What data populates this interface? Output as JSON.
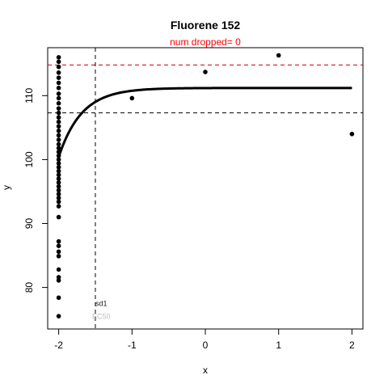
{
  "chart_data": {
    "type": "scatter",
    "title": "Fluorene 152",
    "subtitle": "num dropped= 0",
    "xlabel": "x",
    "ylabel": "y",
    "xlim": [
      -2.15,
      2.15
    ],
    "ylim": [
      73.5,
      117.5
    ],
    "x_ticks": [
      -2,
      -1,
      0,
      1,
      2
    ],
    "y_ticks": [
      80,
      90,
      100,
      110
    ],
    "grid": false,
    "colors": {
      "points": "#000000",
      "fit": "#000000",
      "upper_line": "#cc0000",
      "sd_line": "#000000",
      "vline": "#000000",
      "subtitle": "#ff0000"
    },
    "points": [
      [
        -2,
        116.0
      ],
      [
        -2,
        115.3
      ],
      [
        -2,
        114.5
      ],
      [
        -2,
        113.6
      ],
      [
        -2,
        112.8
      ],
      [
        -2,
        112.0
      ],
      [
        -2,
        111.2
      ],
      [
        -2,
        110.3
      ],
      [
        -2,
        109.6
      ],
      [
        -2,
        108.8
      ],
      [
        -2,
        108.0
      ],
      [
        -2,
        107.3
      ],
      [
        -2,
        106.6
      ],
      [
        -2,
        105.9
      ],
      [
        -2,
        105.2
      ],
      [
        -2,
        104.5
      ],
      [
        -2,
        103.8
      ],
      [
        -2,
        103.1
      ],
      [
        -2,
        102.4
      ],
      [
        -2,
        101.8
      ],
      [
        -2,
        101.2
      ],
      [
        -2,
        100.6
      ],
      [
        -2,
        100.0
      ],
      [
        -2,
        99.4
      ],
      [
        -2,
        98.8
      ],
      [
        -2,
        98.2
      ],
      [
        -2,
        97.6
      ],
      [
        -2,
        97.0
      ],
      [
        -2,
        96.4
      ],
      [
        -2,
        95.8
      ],
      [
        -2,
        95.2
      ],
      [
        -2,
        94.6
      ],
      [
        -2,
        94.0
      ],
      [
        -2,
        93.4
      ],
      [
        -2,
        92.7
      ],
      [
        -2,
        91.0
      ],
      [
        -2,
        87.2
      ],
      [
        -2,
        86.5
      ],
      [
        -2,
        85.6
      ],
      [
        -2,
        84.9
      ],
      [
        -2,
        82.8
      ],
      [
        -2,
        81.6
      ],
      [
        -2,
        81.1
      ],
      [
        -2,
        78.4
      ],
      [
        -2,
        75.5
      ],
      [
        -1,
        109.6
      ],
      [
        0,
        113.7
      ],
      [
        1,
        116.3
      ],
      [
        2,
        104.0
      ]
    ],
    "fit_curve": {
      "plateau": 111.2,
      "start": 100.4,
      "x0": -2,
      "rate": 3.2,
      "x_end": 2
    },
    "hlines": [
      {
        "name": "upper",
        "y": 114.8,
        "style": "dashed",
        "color": "#cc0000"
      },
      {
        "name": "sd",
        "y": 107.3,
        "style": "dashed",
        "color": "#000000"
      }
    ],
    "vline": {
      "x": -1.5,
      "style": "dashed"
    },
    "annotations": [
      {
        "text": "sd1",
        "x": -1.42,
        "y": 77.1
      },
      {
        "text": "EC50",
        "x": -1.42,
        "y": 75.1
      }
    ]
  }
}
